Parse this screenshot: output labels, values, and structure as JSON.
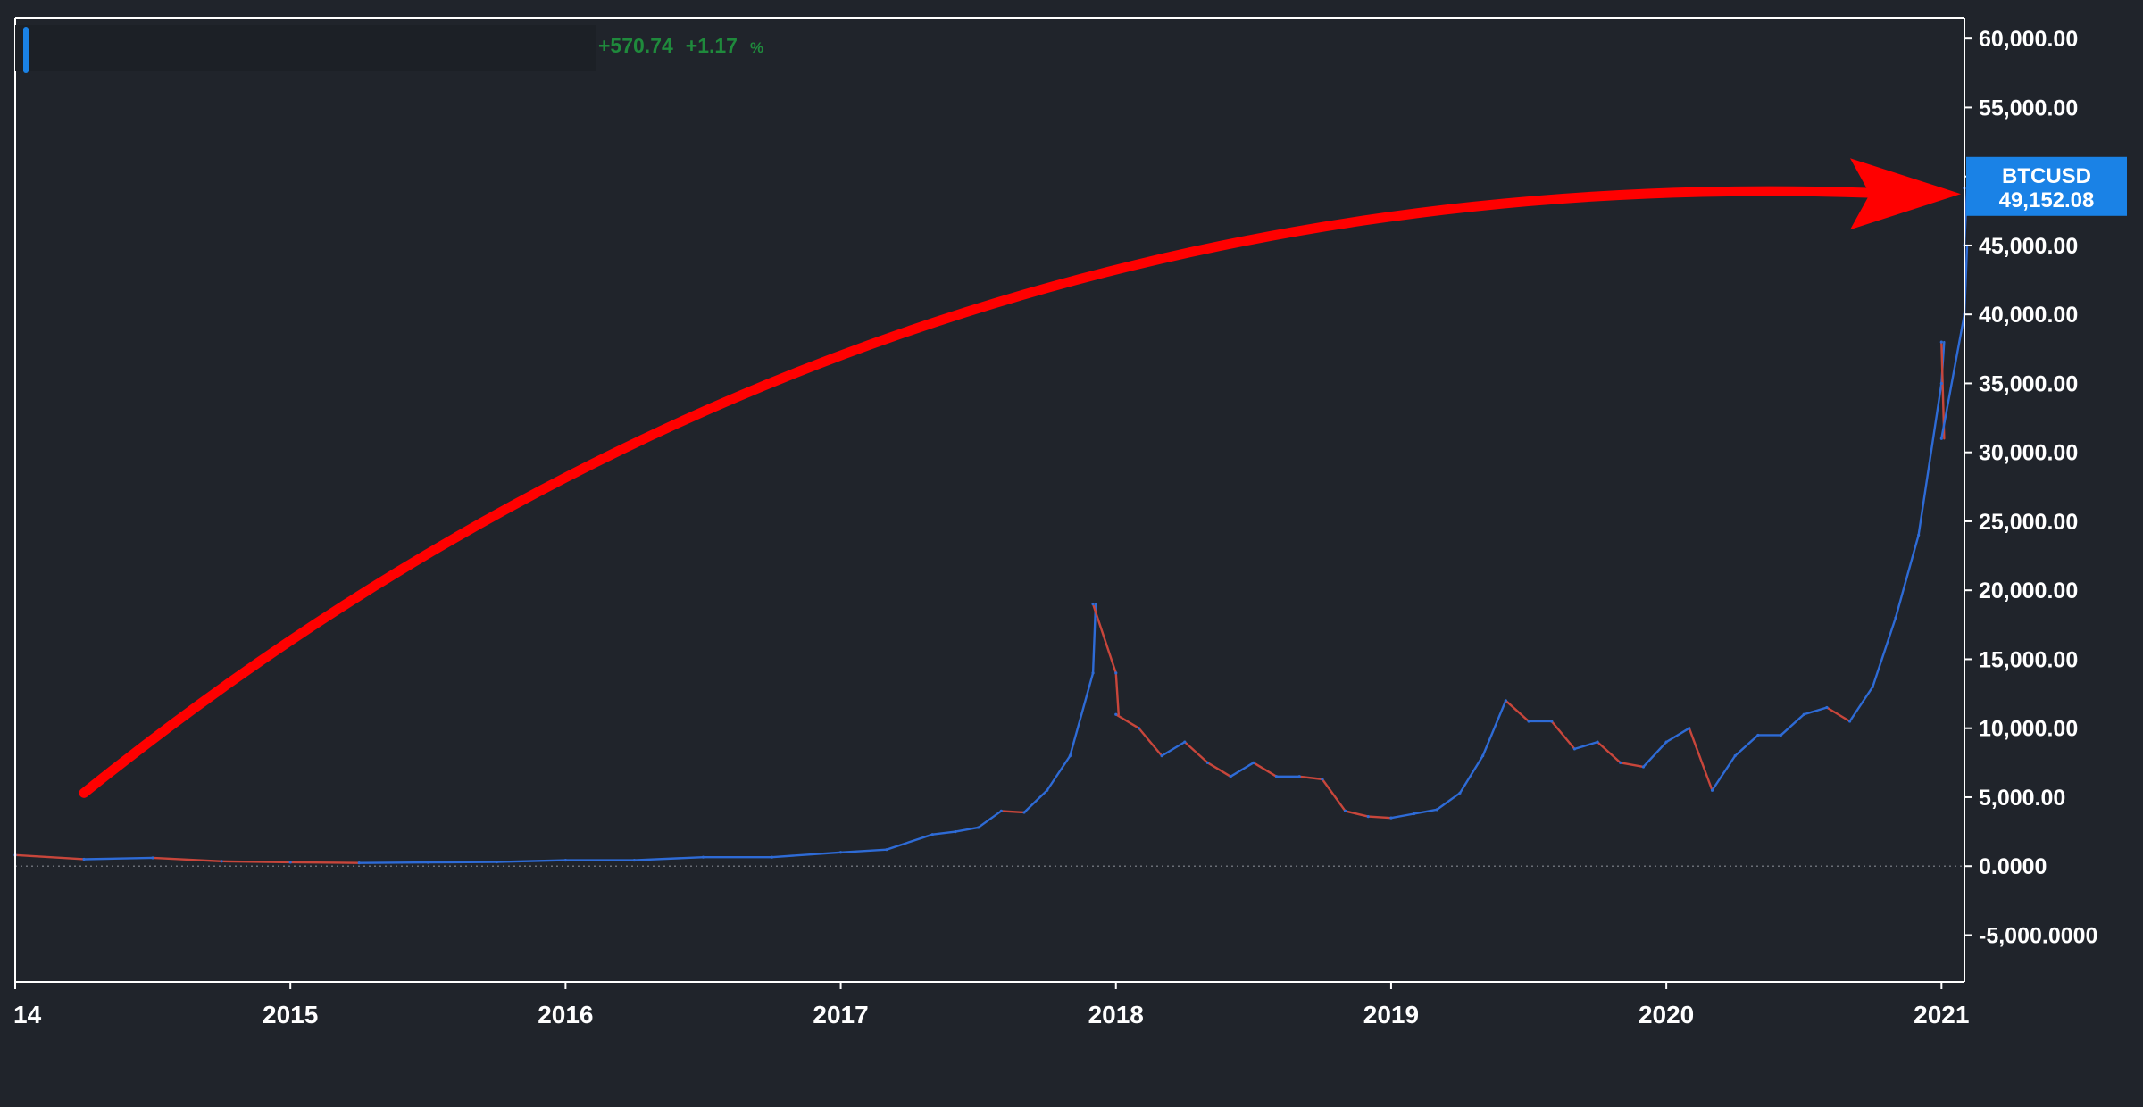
{
  "legend": {
    "change_abs": "+570.74",
    "change_pct": "+1.17",
    "pct_sign": "%"
  },
  "price_tag": {
    "symbol": "BTCUSD",
    "price": "49,152.08"
  },
  "colors": {
    "background": "#20242b",
    "axis_line": "#ffffff",
    "up_candle": "#2e6bd6",
    "down_candle": "#c8463b",
    "price_tag_bg": "#1a82e6",
    "arrow": "#ff0000",
    "legend_change": "#1f8a3c",
    "zero_line": "#6a6e76"
  },
  "annotation": {
    "type": "curved-arrow",
    "color": "#ff0000",
    "from": {
      "x": "2014-04",
      "y": 5300
    },
    "to": {
      "x": "2021-02",
      "y": 48800
    }
  },
  "chart_data": {
    "type": "line",
    "title": "",
    "xlabel": "",
    "ylabel": "",
    "x_tick_labels": [
      "14",
      "2015",
      "2016",
      "2017",
      "2018",
      "2019",
      "2020",
      "2021"
    ],
    "x_tick_dates": [
      "2014-01",
      "2015-01",
      "2016-01",
      "2017-01",
      "2018-01",
      "2019-01",
      "2020-01",
      "2021-01"
    ],
    "y_tick_labels": [
      "60,000.00",
      "55,000.00",
      "50,000.00",
      "45,000.00",
      "40,000.00",
      "35,000.00",
      "30,000.00",
      "25,000.00",
      "20,000.00",
      "15,000.00",
      "10,000.00",
      "5,000.00",
      "0.0000",
      "-5,000.0000"
    ],
    "y_tick_values": [
      60000,
      55000,
      50000,
      45000,
      40000,
      35000,
      30000,
      25000,
      20000,
      15000,
      10000,
      5000,
      0,
      -5000
    ],
    "ylim": [
      -8400,
      61500
    ],
    "xlim": [
      "2014-01",
      "2021-02"
    ],
    "grid": false,
    "zero_line": true,
    "series": [
      {
        "name": "BTCUSD",
        "x": [
          "2014-01",
          "2014-04",
          "2014-07",
          "2014-10",
          "2015-01",
          "2015-04",
          "2015-07",
          "2015-10",
          "2016-01",
          "2016-04",
          "2016-07",
          "2016-10",
          "2017-01",
          "2017-03",
          "2017-05",
          "2017-06",
          "2017-07",
          "2017-08",
          "2017-09",
          "2017-10",
          "2017-11",
          "2017-12",
          "2017-12",
          "2018-01",
          "2018-01",
          "2018-02",
          "2018-03",
          "2018-04",
          "2018-05",
          "2018-06",
          "2018-07",
          "2018-08",
          "2018-09",
          "2018-10",
          "2018-11",
          "2018-12",
          "2019-01",
          "2019-02",
          "2019-03",
          "2019-04",
          "2019-05",
          "2019-06",
          "2019-07",
          "2019-08",
          "2019-09",
          "2019-10",
          "2019-11",
          "2019-12",
          "2020-01",
          "2020-02",
          "2020-03",
          "2020-04",
          "2020-05",
          "2020-06",
          "2020-07",
          "2020-08",
          "2020-09",
          "2020-10",
          "2020-11",
          "2020-12",
          "2021-01",
          "2021-01",
          "2021-01",
          "2021-02",
          "2021-02",
          "2021-02"
        ],
        "values": [
          800,
          500,
          600,
          350,
          280,
          230,
          270,
          300,
          430,
          430,
          650,
          650,
          1000,
          1200,
          2300,
          2500,
          2800,
          4000,
          3900,
          5500,
          8000,
          14000,
          19000,
          14000,
          11000,
          10000,
          8000,
          9000,
          7500,
          6500,
          7500,
          6500,
          6500,
          6300,
          4000,
          3600,
          3500,
          3800,
          4100,
          5300,
          8000,
          12000,
          10500,
          10500,
          8500,
          9000,
          7500,
          7200,
          9000,
          10000,
          5500,
          8000,
          9500,
          9500,
          11000,
          11500,
          10500,
          13000,
          18000,
          24000,
          35000,
          38000,
          31000,
          40000,
          45000,
          49152
        ]
      }
    ]
  }
}
